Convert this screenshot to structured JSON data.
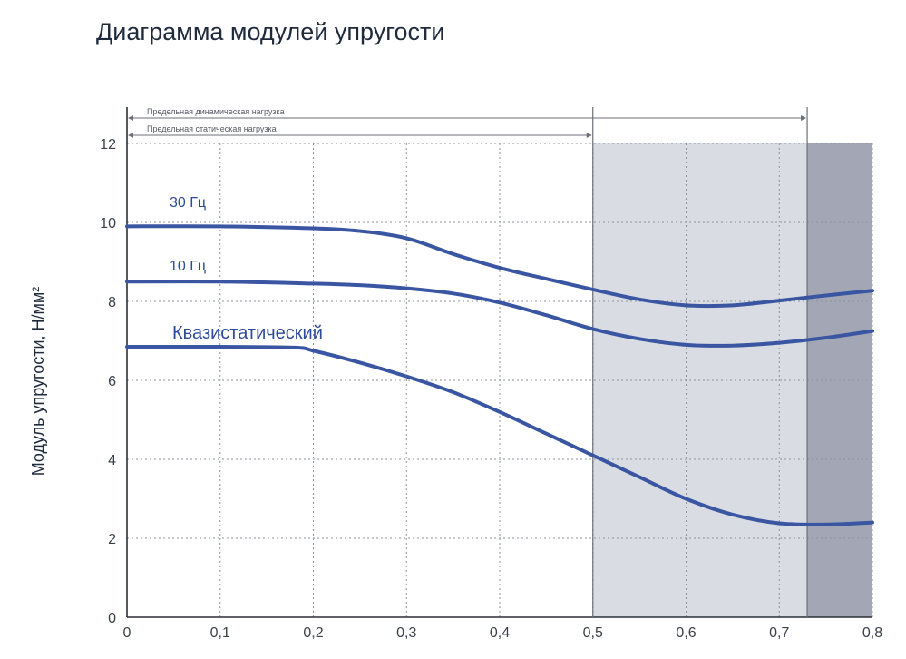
{
  "chart_data": {
    "type": "line",
    "title": "Диаграмма модулей упругости",
    "xlabel": "",
    "ylabel": "Модуль упругости, Н/мм²",
    "xlim": [
      0,
      0.8
    ],
    "ylim": [
      0,
      12
    ],
    "grid": true,
    "x_ticks": [
      "0",
      "0,1",
      "0,2",
      "0,3",
      "0,4",
      "0,5",
      "0,6",
      "0,7",
      "0,8"
    ],
    "y_ticks": [
      "0",
      "2",
      "4",
      "6",
      "8",
      "10",
      "12"
    ],
    "series": [
      {
        "name": "30 Гц",
        "color": "#3a56a3",
        "x": [
          0,
          0.1,
          0.2,
          0.25,
          0.3,
          0.35,
          0.4,
          0.45,
          0.5,
          0.55,
          0.6,
          0.65,
          0.7,
          0.75,
          0.8
        ],
        "y": [
          9.9,
          9.9,
          9.85,
          9.78,
          9.6,
          9.2,
          8.85,
          8.57,
          8.3,
          8.05,
          7.9,
          7.9,
          8.02,
          8.15,
          8.27
        ]
      },
      {
        "name": "10 Гц",
        "color": "#3a56a3",
        "x": [
          0,
          0.1,
          0.2,
          0.25,
          0.3,
          0.35,
          0.4,
          0.45,
          0.5,
          0.55,
          0.6,
          0.65,
          0.7,
          0.75,
          0.8
        ],
        "y": [
          8.5,
          8.5,
          8.45,
          8.41,
          8.33,
          8.2,
          7.97,
          7.65,
          7.3,
          7.05,
          6.9,
          6.88,
          6.95,
          7.08,
          7.25
        ]
      },
      {
        "name": "Квазистатический",
        "color": "#3a56a3",
        "x": [
          0,
          0.1,
          0.18,
          0.2,
          0.25,
          0.3,
          0.35,
          0.4,
          0.45,
          0.5,
          0.55,
          0.6,
          0.65,
          0.7,
          0.75,
          0.8
        ],
        "y": [
          6.85,
          6.85,
          6.83,
          6.75,
          6.45,
          6.1,
          5.7,
          5.2,
          4.65,
          4.1,
          3.55,
          3.0,
          2.6,
          2.38,
          2.35,
          2.4
        ]
      }
    ],
    "shaded_regions": [
      {
        "x_from": 0.5,
        "x_to": 0.73,
        "color": "#dadce3"
      },
      {
        "x_from": 0.73,
        "x_to": 0.8,
        "color": "#a3a7b5"
      }
    ],
    "annotations": [
      {
        "text": "Предельная динамическая нагрузка",
        "x_from": 0,
        "x_to": 0.73,
        "level": 1
      },
      {
        "text": "Предельная статическая нагрузка",
        "x_from": 0,
        "x_to": 0.5,
        "level": 2
      }
    ]
  }
}
